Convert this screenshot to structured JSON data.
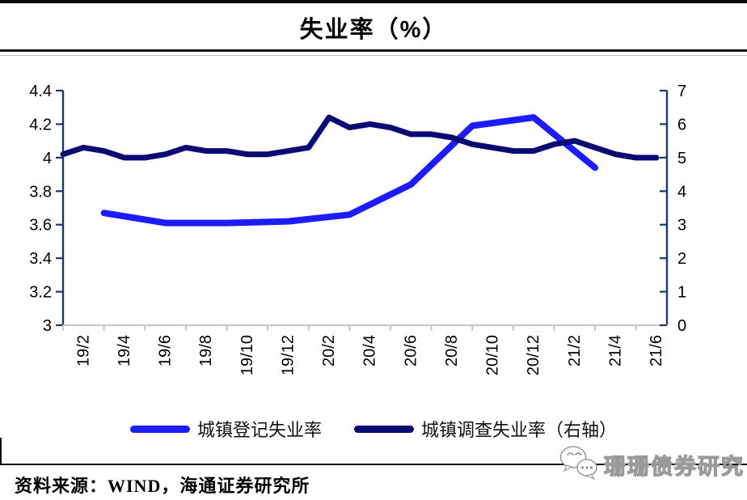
{
  "page": {
    "title": "失业率（%）",
    "source_label": "资料来源：WIND，海通证券研究所",
    "watermark_text": "珊珊债券研究"
  },
  "chart_data": {
    "type": "line",
    "title": "失业率（%）",
    "grid": false,
    "legend_position": "bottom",
    "categories": [
      "19/1",
      "19/2",
      "19/3",
      "19/4",
      "19/5",
      "19/6",
      "19/7",
      "19/8",
      "19/9",
      "19/10",
      "19/11",
      "19/12",
      "20/1",
      "20/2",
      "20/3",
      "20/4",
      "20/5",
      "20/6",
      "20/7",
      "20/8",
      "20/9",
      "20/10",
      "20/11",
      "20/12",
      "21/1",
      "21/2",
      "21/3",
      "21/4",
      "21/5",
      "21/6"
    ],
    "x_tick_labels": [
      "19/2",
      "19/4",
      "19/6",
      "19/8",
      "19/10",
      "19/12",
      "20/2",
      "20/4",
      "20/6",
      "20/8",
      "20/10",
      "20/12",
      "21/2",
      "21/4",
      "21/6"
    ],
    "left_axis": {
      "min": 3,
      "max": 4.4,
      "tick_step": 0.2,
      "tick_labels": [
        "4.4",
        "4.2",
        "4",
        "3.8",
        "3.6",
        "3.4",
        "3.2",
        "3"
      ]
    },
    "right_axis": {
      "min": 0,
      "max": 7,
      "tick_step": 1,
      "tick_labels": [
        "7",
        "6",
        "5",
        "4",
        "3",
        "2",
        "1",
        "0"
      ]
    },
    "series": [
      {
        "name": "城镇登记失业率",
        "yaxis": "left",
        "color": "#1C1CFF",
        "x": [
          "19/3",
          "19/6",
          "19/9",
          "19/12",
          "20/3",
          "20/6",
          "20/9",
          "20/12",
          "21/3"
        ],
        "values": [
          3.67,
          3.61,
          3.61,
          3.62,
          3.66,
          3.84,
          4.19,
          4.24,
          3.94
        ]
      },
      {
        "name": "城镇调查失业率（右轴）",
        "yaxis": "right",
        "color": "#0A0A73",
        "x": [
          "19/1",
          "19/2",
          "19/3",
          "19/4",
          "19/5",
          "19/6",
          "19/7",
          "19/8",
          "19/9",
          "19/10",
          "19/11",
          "19/12",
          "20/1",
          "20/2",
          "20/3",
          "20/4",
          "20/5",
          "20/6",
          "20/7",
          "20/8",
          "20/9",
          "20/10",
          "20/11",
          "20/12",
          "21/1",
          "21/2",
          "21/3",
          "21/4",
          "21/5",
          "21/6"
        ],
        "values": [
          5.1,
          5.3,
          5.2,
          5.0,
          5.0,
          5.1,
          5.3,
          5.2,
          5.2,
          5.1,
          5.1,
          5.2,
          5.3,
          6.2,
          5.9,
          6.0,
          5.9,
          5.7,
          5.7,
          5.6,
          5.4,
          5.3,
          5.2,
          5.2,
          5.4,
          5.5,
          5.3,
          5.1,
          5.0,
          5.0
        ]
      }
    ]
  },
  "colors": {
    "y_axis": "#1F3864",
    "x_axis": "#C8C8C8",
    "tick_text": "#000000",
    "registered_blue": "#1C1CFF",
    "surveyed_navy": "#0A0A73",
    "rule_black": "#0A0A0A"
  }
}
